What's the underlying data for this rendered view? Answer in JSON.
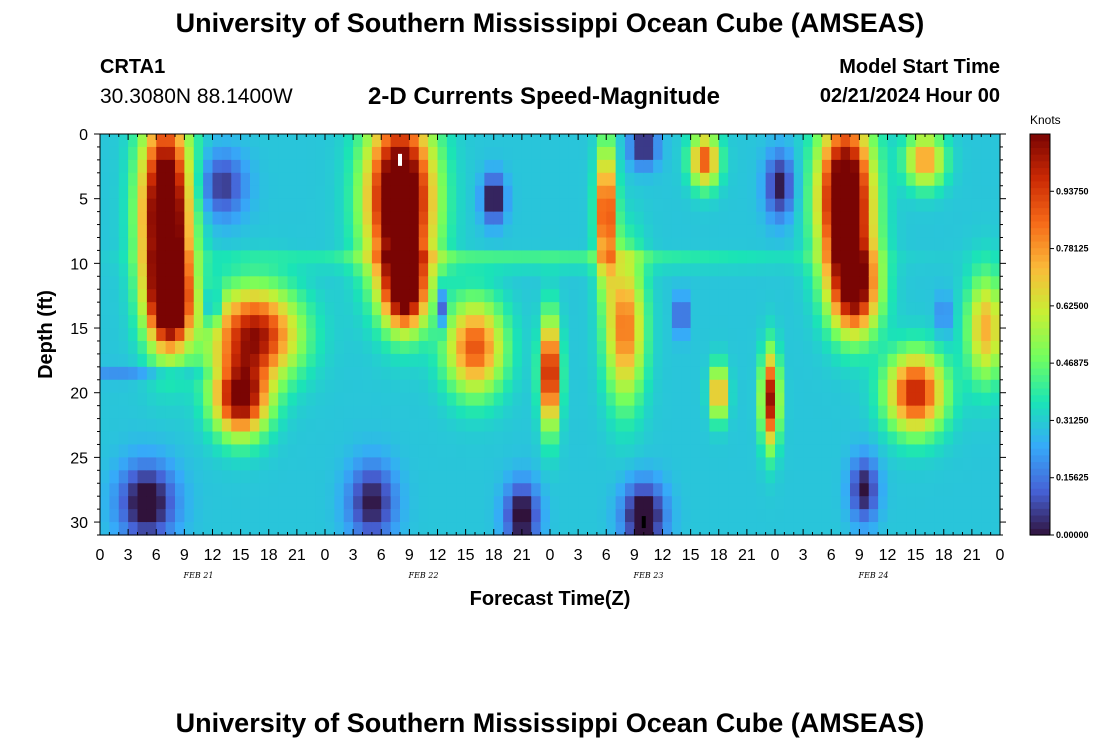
{
  "header": {
    "title": "University of Southern Mississippi Ocean Cube (AMSEAS)",
    "station": "CRTA1",
    "coords": "30.3080N  88.1400W",
    "chart_title": "2-D Currents Speed-Magnitude",
    "model_label": "Model Start Time",
    "model_value": "02/21/2024 Hour 00"
  },
  "footer": {
    "title": "University of Southern Mississippi Ocean Cube (AMSEAS)"
  },
  "colors": {
    "scale": [
      "#30123b",
      "#4662d7",
      "#36aaf9",
      "#1ae4b6",
      "#72fe5e",
      "#c8ef34",
      "#faba39",
      "#f66b19",
      "#cb2a04",
      "#7a0403"
    ]
  },
  "chart_data": {
    "type": "heatmap",
    "title": "2-D Currents Speed-Magnitude",
    "xlabel": "Forecast Time(Z)",
    "ylabel": "Depth (ft)",
    "x_range_hours": [
      0,
      96
    ],
    "ylim": [
      0,
      31
    ],
    "y_ticks": [
      "0",
      "5",
      "10",
      "15",
      "20",
      "25",
      "30"
    ],
    "x_ticks": [
      "0",
      "3",
      "6",
      "9",
      "12",
      "15",
      "18",
      "21",
      "0",
      "3",
      "6",
      "9",
      "12",
      "15",
      "18",
      "21",
      "0",
      "3",
      "6",
      "9",
      "12",
      "15",
      "18",
      "21",
      "0",
      "3",
      "6",
      "9",
      "12",
      "15",
      "18",
      "21",
      "0"
    ],
    "date_labels": [
      "FEB 21",
      "FEB 22",
      "FEB 23",
      "FEB 24"
    ],
    "colorbar": {
      "unit": "Knots",
      "range": [
        0,
        1.09375
      ],
      "labels": [
        "0.00000",
        "0.15625",
        "0.31250",
        "0.46875",
        "0.62500",
        "0.78125",
        "0.93750"
      ]
    },
    "blobs": [
      {
        "t": 7.0,
        "d": 6.0,
        "w": 2.6,
        "h": 7.5,
        "v": 1.05
      },
      {
        "t": 7.5,
        "d": 13.0,
        "w": 2.2,
        "h": 3.5,
        "v": 0.85
      },
      {
        "t": 16.5,
        "d": 15.5,
        "w": 4.5,
        "h": 3.5,
        "v": 0.75
      },
      {
        "t": 15.0,
        "d": 20.5,
        "w": 2.8,
        "h": 2.8,
        "v": 0.8
      },
      {
        "t": 32.0,
        "d": 5.0,
        "w": 3.5,
        "h": 6.5,
        "v": 1.05
      },
      {
        "t": 32.5,
        "d": 12.0,
        "w": 2.2,
        "h": 3.0,
        "v": 0.8
      },
      {
        "t": 40.0,
        "d": 16.5,
        "w": 3.0,
        "h": 3.5,
        "v": 0.6
      },
      {
        "t": 48.0,
        "d": 18.5,
        "w": 1.0,
        "h": 4.0,
        "v": 0.82
      },
      {
        "t": 54.0,
        "d": 6.0,
        "w": 1.0,
        "h": 5.0,
        "v": 0.7
      },
      {
        "t": 56.0,
        "d": 15.0,
        "w": 2.0,
        "h": 5.5,
        "v": 0.55
      },
      {
        "t": 64.5,
        "d": 2.0,
        "w": 1.5,
        "h": 2.0,
        "v": 0.6
      },
      {
        "t": 66.0,
        "d": 20.0,
        "w": 0.9,
        "h": 2.0,
        "v": 0.55
      },
      {
        "t": 71.5,
        "d": 20.5,
        "w": 0.9,
        "h": 3.5,
        "v": 0.75
      },
      {
        "t": 79.5,
        "d": 5.0,
        "w": 2.8,
        "h": 6.0,
        "v": 1.05
      },
      {
        "t": 80.5,
        "d": 12.0,
        "w": 2.5,
        "h": 3.5,
        "v": 0.75
      },
      {
        "t": 87.0,
        "d": 20.0,
        "w": 3.0,
        "h": 3.0,
        "v": 0.7
      },
      {
        "t": 88.0,
        "d": 2.0,
        "w": 2.0,
        "h": 2.0,
        "v": 0.5
      },
      {
        "t": 94.5,
        "d": 15.0,
        "w": 2.0,
        "h": 4.0,
        "v": 0.45
      },
      {
        "t": 5.0,
        "d": 28.5,
        "w": 3.0,
        "h": 3.0,
        "v": -0.35
      },
      {
        "t": 13.0,
        "d": 4.0,
        "w": 2.5,
        "h": 2.5,
        "v": -0.25
      },
      {
        "t": 12.0,
        "d": 13.5,
        "w": 0.6,
        "h": 1.5,
        "v": -0.35
      },
      {
        "t": 29.0,
        "d": 28.5,
        "w": 2.5,
        "h": 3.0,
        "v": -0.3
      },
      {
        "t": 42.0,
        "d": 5.0,
        "w": 1.2,
        "h": 1.8,
        "v": -0.35
      },
      {
        "t": 36.5,
        "d": 13.5,
        "w": 0.6,
        "h": 1.5,
        "v": -0.3
      },
      {
        "t": 45.0,
        "d": 29.5,
        "w": 1.8,
        "h": 2.5,
        "v": -0.35
      },
      {
        "t": 58.0,
        "d": 29.5,
        "w": 2.2,
        "h": 2.5,
        "v": -0.38
      },
      {
        "t": 58.0,
        "d": 1.0,
        "w": 1.5,
        "h": 1.5,
        "v": -0.3
      },
      {
        "t": 62.0,
        "d": 14.0,
        "w": 0.6,
        "h": 1.5,
        "v": -0.3
      },
      {
        "t": 72.5,
        "d": 4.0,
        "w": 1.5,
        "h": 2.5,
        "v": -0.3
      },
      {
        "t": 81.5,
        "d": 27.5,
        "w": 1.5,
        "h": 2.5,
        "v": -0.3
      },
      {
        "t": 90.0,
        "d": 14.0,
        "w": 0.8,
        "h": 1.5,
        "v": -0.15
      },
      {
        "t": 3.5,
        "d": 18.5,
        "w": 10.0,
        "h": 0.6,
        "v": -0.1
      },
      {
        "t": 45.0,
        "d": 9.8,
        "w": 30.0,
        "h": 0.6,
        "v": 0.15
      }
    ],
    "markers": [
      {
        "label": "white-marker",
        "t": 32.0,
        "d": 2.0,
        "color": "#ffffff"
      },
      {
        "label": "black-marker",
        "t": 58.0,
        "d": 30.0,
        "color": "#000000"
      }
    ]
  }
}
